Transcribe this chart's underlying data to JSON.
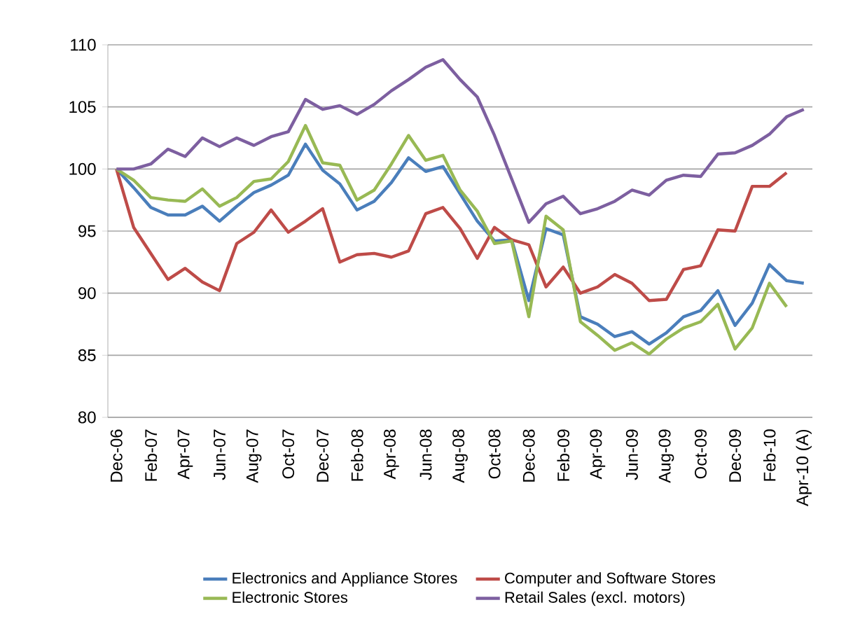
{
  "chart_data": {
    "type": "line",
    "categories": [
      "Dec-06",
      null,
      "Feb-07",
      null,
      "Apr-07",
      null,
      "Jun-07",
      null,
      "Aug-07",
      null,
      "Oct-07",
      null,
      "Dec-07",
      null,
      "Feb-08",
      null,
      "Apr-08",
      null,
      "Jun-08",
      null,
      "Aug-08",
      null,
      "Oct-08",
      null,
      "Dec-08",
      null,
      "Feb-09",
      null,
      "Apr-09",
      null,
      "Jun-09",
      null,
      "Aug-09",
      null,
      "Oct-09",
      null,
      "Dec-09",
      null,
      "Feb-10",
      null,
      "Apr-10 (A)"
    ],
    "series": [
      {
        "name": "Electronics and Appliance Stores",
        "color": "#4a7ebb",
        "values": [
          100,
          98.5,
          96.9,
          96.3,
          96.3,
          97.0,
          95.8,
          97.0,
          98.1,
          98.7,
          99.5,
          102.0,
          99.9,
          98.8,
          96.7,
          97.4,
          98.9,
          100.9,
          99.8,
          100.2,
          98.0,
          95.8,
          94.2,
          94.3,
          89.4,
          95.2,
          94.7,
          88.1,
          87.5,
          86.5,
          86.9,
          85.9,
          86.8,
          88.1,
          88.6,
          90.2,
          87.4,
          89.2,
          92.3,
          91.0,
          90.8
        ]
      },
      {
        "name": "Computer and Software Stores",
        "color": "#be4b48",
        "values": [
          100,
          95.3,
          93.2,
          91.1,
          92.0,
          90.9,
          90.2,
          94.0,
          94.9,
          96.7,
          94.9,
          95.8,
          96.8,
          92.5,
          93.1,
          93.2,
          92.9,
          93.4,
          96.4,
          96.9,
          95.2,
          92.8,
          95.3,
          94.3,
          93.9,
          90.5,
          92.1,
          90.0,
          90.5,
          91.5,
          90.8,
          89.4,
          89.5,
          91.9,
          92.2,
          95.1,
          95.0,
          98.6,
          98.6,
          99.7,
          null
        ]
      },
      {
        "name": "Electronic Stores",
        "color": "#98b954",
        "values": [
          100,
          99.1,
          97.7,
          97.5,
          97.4,
          98.4,
          97.0,
          97.7,
          99.0,
          99.2,
          100.6,
          103.5,
          100.5,
          100.3,
          97.5,
          98.3,
          100.4,
          102.7,
          100.7,
          101.1,
          98.3,
          96.6,
          94.0,
          94.2,
          88.1,
          96.2,
          95.1,
          87.7,
          86.6,
          85.4,
          86.0,
          85.1,
          86.3,
          87.2,
          87.7,
          89.1,
          85.5,
          87.2,
          90.8,
          88.9,
          null
        ]
      },
      {
        "name": "Retail Sales (excl. motors)",
        "color": "#7d5fa0",
        "values": [
          100,
          100,
          100.4,
          101.6,
          101.0,
          102.5,
          101.8,
          102.5,
          101.9,
          102.6,
          103.0,
          105.6,
          104.8,
          105.1,
          104.4,
          105.2,
          106.3,
          107.2,
          108.2,
          108.8,
          107.2,
          105.8,
          102.7,
          99.2,
          95.7,
          97.2,
          97.8,
          96.4,
          96.8,
          97.4,
          98.3,
          97.9,
          99.1,
          99.5,
          99.4,
          101.2,
          101.3,
          101.9,
          102.8,
          104.2,
          104.8
        ]
      }
    ],
    "ylim": [
      80,
      110
    ],
    "yticks": [
      80,
      85,
      90,
      95,
      100,
      105,
      110
    ],
    "grid": "y",
    "legend": "bottom",
    "marker": "none",
    "line_style": "solid"
  }
}
